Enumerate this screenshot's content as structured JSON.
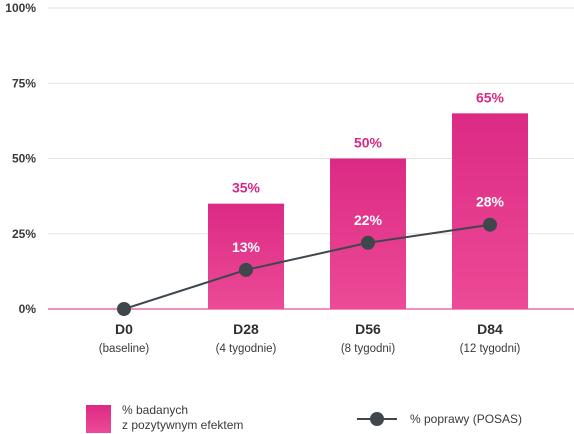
{
  "chart_data": {
    "type": "bar",
    "categories": [
      "D0",
      "D28",
      "D56",
      "D84"
    ],
    "category_sublabels": [
      "(baseline)",
      "(4 tygodnie)",
      "(8 tygodni)",
      "(12 tygodni)"
    ],
    "ylim": [
      0,
      100
    ],
    "yticks": [
      "0%",
      "25%",
      "50%",
      "75%",
      "100%"
    ],
    "grid": true,
    "series": [
      {
        "name": "% badanych z pozytywnym efektem",
        "type": "bar",
        "values": [
          0,
          35,
          50,
          65
        ],
        "labels": [
          "",
          "35%",
          "50%",
          "65%"
        ],
        "color": "#e0338a"
      },
      {
        "name": "% poprawy (POSAS)",
        "type": "line",
        "values": [
          0,
          13,
          22,
          28
        ],
        "labels": [
          "",
          "13%",
          "22%",
          "28%"
        ],
        "color": "#3f474d"
      }
    ],
    "legend": {
      "placement": "bottom",
      "bar_label_line1": "% badanych",
      "bar_label_line2": "z pozytywnym efektem",
      "line_label": "% poprawy (POSAS)"
    },
    "label_color": "#d42a82"
  }
}
